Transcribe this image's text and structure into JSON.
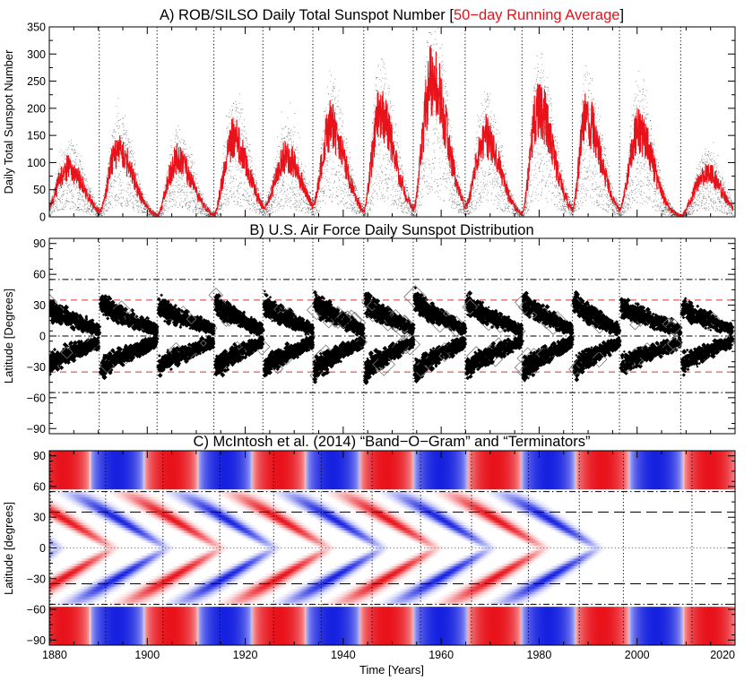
{
  "colors": {
    "foreground": "#000000",
    "background": "#ffffff",
    "running_average": "#e8121a",
    "activity_band_positive": "#e8121a",
    "activity_band_negative": "#1621e0",
    "cycle_boundary": "#000000",
    "terminator_latitude": "#e03030"
  },
  "chart_data": [
    {
      "id": "A",
      "type": "scatter",
      "title_parts": [
        {
          "text": "A) ROB/SILSO Daily Total Sunspot Number [",
          "color": "#000000"
        },
        {
          "text": "50−day Running Average",
          "color": "#e8121a"
        },
        {
          "text": "]",
          "color": "#000000"
        }
      ],
      "ylabel": "Daily Total Sunspot Number",
      "xlabel": "",
      "xlim": [
        1880,
        2020
      ],
      "ylim": [
        0,
        350
      ],
      "yticks": [
        0,
        50,
        100,
        150,
        200,
        250,
        300,
        350
      ],
      "ytick_labels": [
        "0",
        "50",
        "100",
        "150",
        "200",
        "250",
        "300",
        "350"
      ],
      "xticks": [
        1880,
        1900,
        1920,
        1940,
        1960,
        1980,
        2000,
        2020
      ],
      "show_xtick_labels": false,
      "cycle_boundaries_years": [
        1890.2,
        1902.0,
        1913.6,
        1923.6,
        1933.8,
        1944.2,
        1954.3,
        1964.9,
        1976.5,
        1986.8,
        1996.4,
        2008.9
      ],
      "series": [
        {
          "name": "Daily total sunspot number",
          "style": "black dots",
          "cycles": [
            {
              "start": 1878.9,
              "max": 1884.0,
              "peak": 165
            },
            {
              "start": 1890.2,
              "max": 1894.1,
              "peak": 225
            },
            {
              "start": 1902.0,
              "max": 1906.2,
              "peak": 190
            },
            {
              "start": 1913.6,
              "max": 1917.6,
              "peak": 265
            },
            {
              "start": 1923.6,
              "max": 1928.4,
              "peak": 225
            },
            {
              "start": 1933.8,
              "max": 1937.4,
              "peak": 285
            },
            {
              "start": 1944.2,
              "max": 1947.5,
              "peak": 310
            },
            {
              "start": 1954.3,
              "max": 1958.2,
              "peak": 350
            },
            {
              "start": 1964.9,
              "max": 1968.9,
              "peak": 265
            },
            {
              "start": 1976.5,
              "max": 1979.9,
              "peak": 305
            },
            {
              "start": 1986.8,
              "max": 1989.6,
              "peak": 300
            },
            {
              "start": 1996.4,
              "max": 2000.3,
              "peak": 275
            },
            {
              "start": 2008.9,
              "max": 2014.3,
              "peak": 150
            }
          ]
        },
        {
          "name": "50-day Running Average",
          "style": "red line",
          "cycles": [
            {
              "start": 1878.9,
              "max": 1884.0,
              "peak": 90
            },
            {
              "start": 1890.2,
              "max": 1894.1,
              "peak": 125
            },
            {
              "start": 1902.0,
              "max": 1906.2,
              "peak": 105
            },
            {
              "start": 1913.6,
              "max": 1917.6,
              "peak": 145
            },
            {
              "start": 1923.6,
              "max": 1928.4,
              "peak": 110
            },
            {
              "start": 1933.8,
              "max": 1937.4,
              "peak": 165
            },
            {
              "start": 1944.2,
              "max": 1947.5,
              "peak": 190
            },
            {
              "start": 1954.3,
              "max": 1958.2,
              "peak": 255
            },
            {
              "start": 1964.9,
              "max": 1968.9,
              "peak": 150
            },
            {
              "start": 1976.5,
              "max": 1979.9,
              "peak": 200
            },
            {
              "start": 1986.8,
              "max": 1989.6,
              "peak": 180
            },
            {
              "start": 1996.4,
              "max": 2000.3,
              "peak": 160
            },
            {
              "start": 2008.9,
              "max": 2014.3,
              "peak": 80
            }
          ]
        }
      ]
    },
    {
      "id": "B",
      "type": "scatter",
      "title": "B) U.S. Air Force Daily Sunspot Distribution",
      "ylabel": "Latitude [Degrees]",
      "xlabel": "",
      "xlim": [
        1880,
        2020
      ],
      "ylim": [
        -95,
        95
      ],
      "yticks": [
        -90,
        -60,
        -30,
        0,
        30,
        60,
        90
      ],
      "ytick_labels": [
        "−90",
        "−60",
        "−30",
        "0",
        "30",
        "60",
        "90"
      ],
      "show_xtick_labels": false,
      "reference_lines": [
        {
          "lat": 55,
          "style": "dash-dot black"
        },
        {
          "lat": -55,
          "style": "dash-dot black"
        },
        {
          "lat": 0,
          "style": "dash-dot black"
        },
        {
          "lat": 35,
          "style": "dashed red"
        },
        {
          "lat": -35,
          "style": "dashed red"
        }
      ],
      "series": [
        {
          "name": "Daily sunspot groups (butterfly wings, both hemispheres)",
          "marker": "diamond, size proportional to area",
          "cycles": [
            {
              "start": 1878.9,
              "end": 1890.2,
              "start_lat": 30,
              "end_lat": 6,
              "intensity": 0.7
            },
            {
              "start": 1890.2,
              "end": 1902.0,
              "start_lat": 32,
              "end_lat": 6,
              "intensity": 0.8
            },
            {
              "start": 1902.0,
              "end": 1913.6,
              "start_lat": 30,
              "end_lat": 6,
              "intensity": 0.75
            },
            {
              "start": 1913.6,
              "end": 1923.6,
              "start_lat": 32,
              "end_lat": 6,
              "intensity": 0.85
            },
            {
              "start": 1923.6,
              "end": 1933.8,
              "start_lat": 32,
              "end_lat": 6,
              "intensity": 0.8
            },
            {
              "start": 1933.8,
              "end": 1944.2,
              "start_lat": 34,
              "end_lat": 6,
              "intensity": 0.95
            },
            {
              "start": 1944.2,
              "end": 1954.3,
              "start_lat": 35,
              "end_lat": 6,
              "intensity": 1.0
            },
            {
              "start": 1954.3,
              "end": 1964.9,
              "start_lat": 36,
              "end_lat": 6,
              "intensity": 1.0
            },
            {
              "start": 1964.9,
              "end": 1976.5,
              "start_lat": 32,
              "end_lat": 6,
              "intensity": 0.85
            },
            {
              "start": 1976.5,
              "end": 1986.8,
              "start_lat": 34,
              "end_lat": 6,
              "intensity": 0.95
            },
            {
              "start": 1986.8,
              "end": 1996.4,
              "start_lat": 34,
              "end_lat": 6,
              "intensity": 0.9
            },
            {
              "start": 1996.4,
              "end": 2008.9,
              "start_lat": 30,
              "end_lat": 6,
              "intensity": 0.75
            },
            {
              "start": 2008.9,
              "end": 2019.5,
              "start_lat": 28,
              "end_lat": 6,
              "intensity": 0.55
            }
          ]
        }
      ]
    },
    {
      "id": "C",
      "type": "heatmap",
      "title": "C) McIntosh et al. (2014) “Band−O−Gram” and “Terminators”",
      "ylabel": "Latitude [degrees]",
      "xlabel": "Time [Years]",
      "xlim": [
        1880,
        2020
      ],
      "ylim": [
        -95,
        95
      ],
      "xticks": [
        1880,
        1900,
        1920,
        1940,
        1960,
        1980,
        2000,
        2020
      ],
      "xtick_labels": [
        "1880",
        "1900",
        "1920",
        "1940",
        "1960",
        "1980",
        "2000",
        "2020"
      ],
      "yticks": [
        -90,
        -60,
        -30,
        0,
        30,
        60,
        90
      ],
      "ytick_labels": [
        "−90",
        "−60",
        "−30",
        "0",
        "30",
        "60",
        "90"
      ],
      "reference_lines": [
        {
          "lat": 55,
          "style": "dash-dot black"
        },
        {
          "lat": -55,
          "style": "dash-dot black"
        },
        {
          "lat": 35,
          "style": "long-dash black"
        },
        {
          "lat": -35,
          "style": "long-dash black"
        },
        {
          "lat": 0,
          "style": "dotted grey"
        }
      ],
      "terminator_years": [
        1880.2,
        1891.5,
        1903.2,
        1914.8,
        1925.8,
        1935.5,
        1945.9,
        1955.8,
        1966.2,
        1977.8,
        1988.2,
        1997.2,
        2011.2
      ],
      "band_period_years": 22,
      "bands": {
        "polar_lat_range": [
          58,
          90
        ],
        "migrating_start_lat": 55,
        "migrating_end_lat": 0,
        "migration_duration_years": 19,
        "colormap": [
          "#1621e0",
          "#ffffff",
          "#e8121a"
        ]
      }
    }
  ]
}
